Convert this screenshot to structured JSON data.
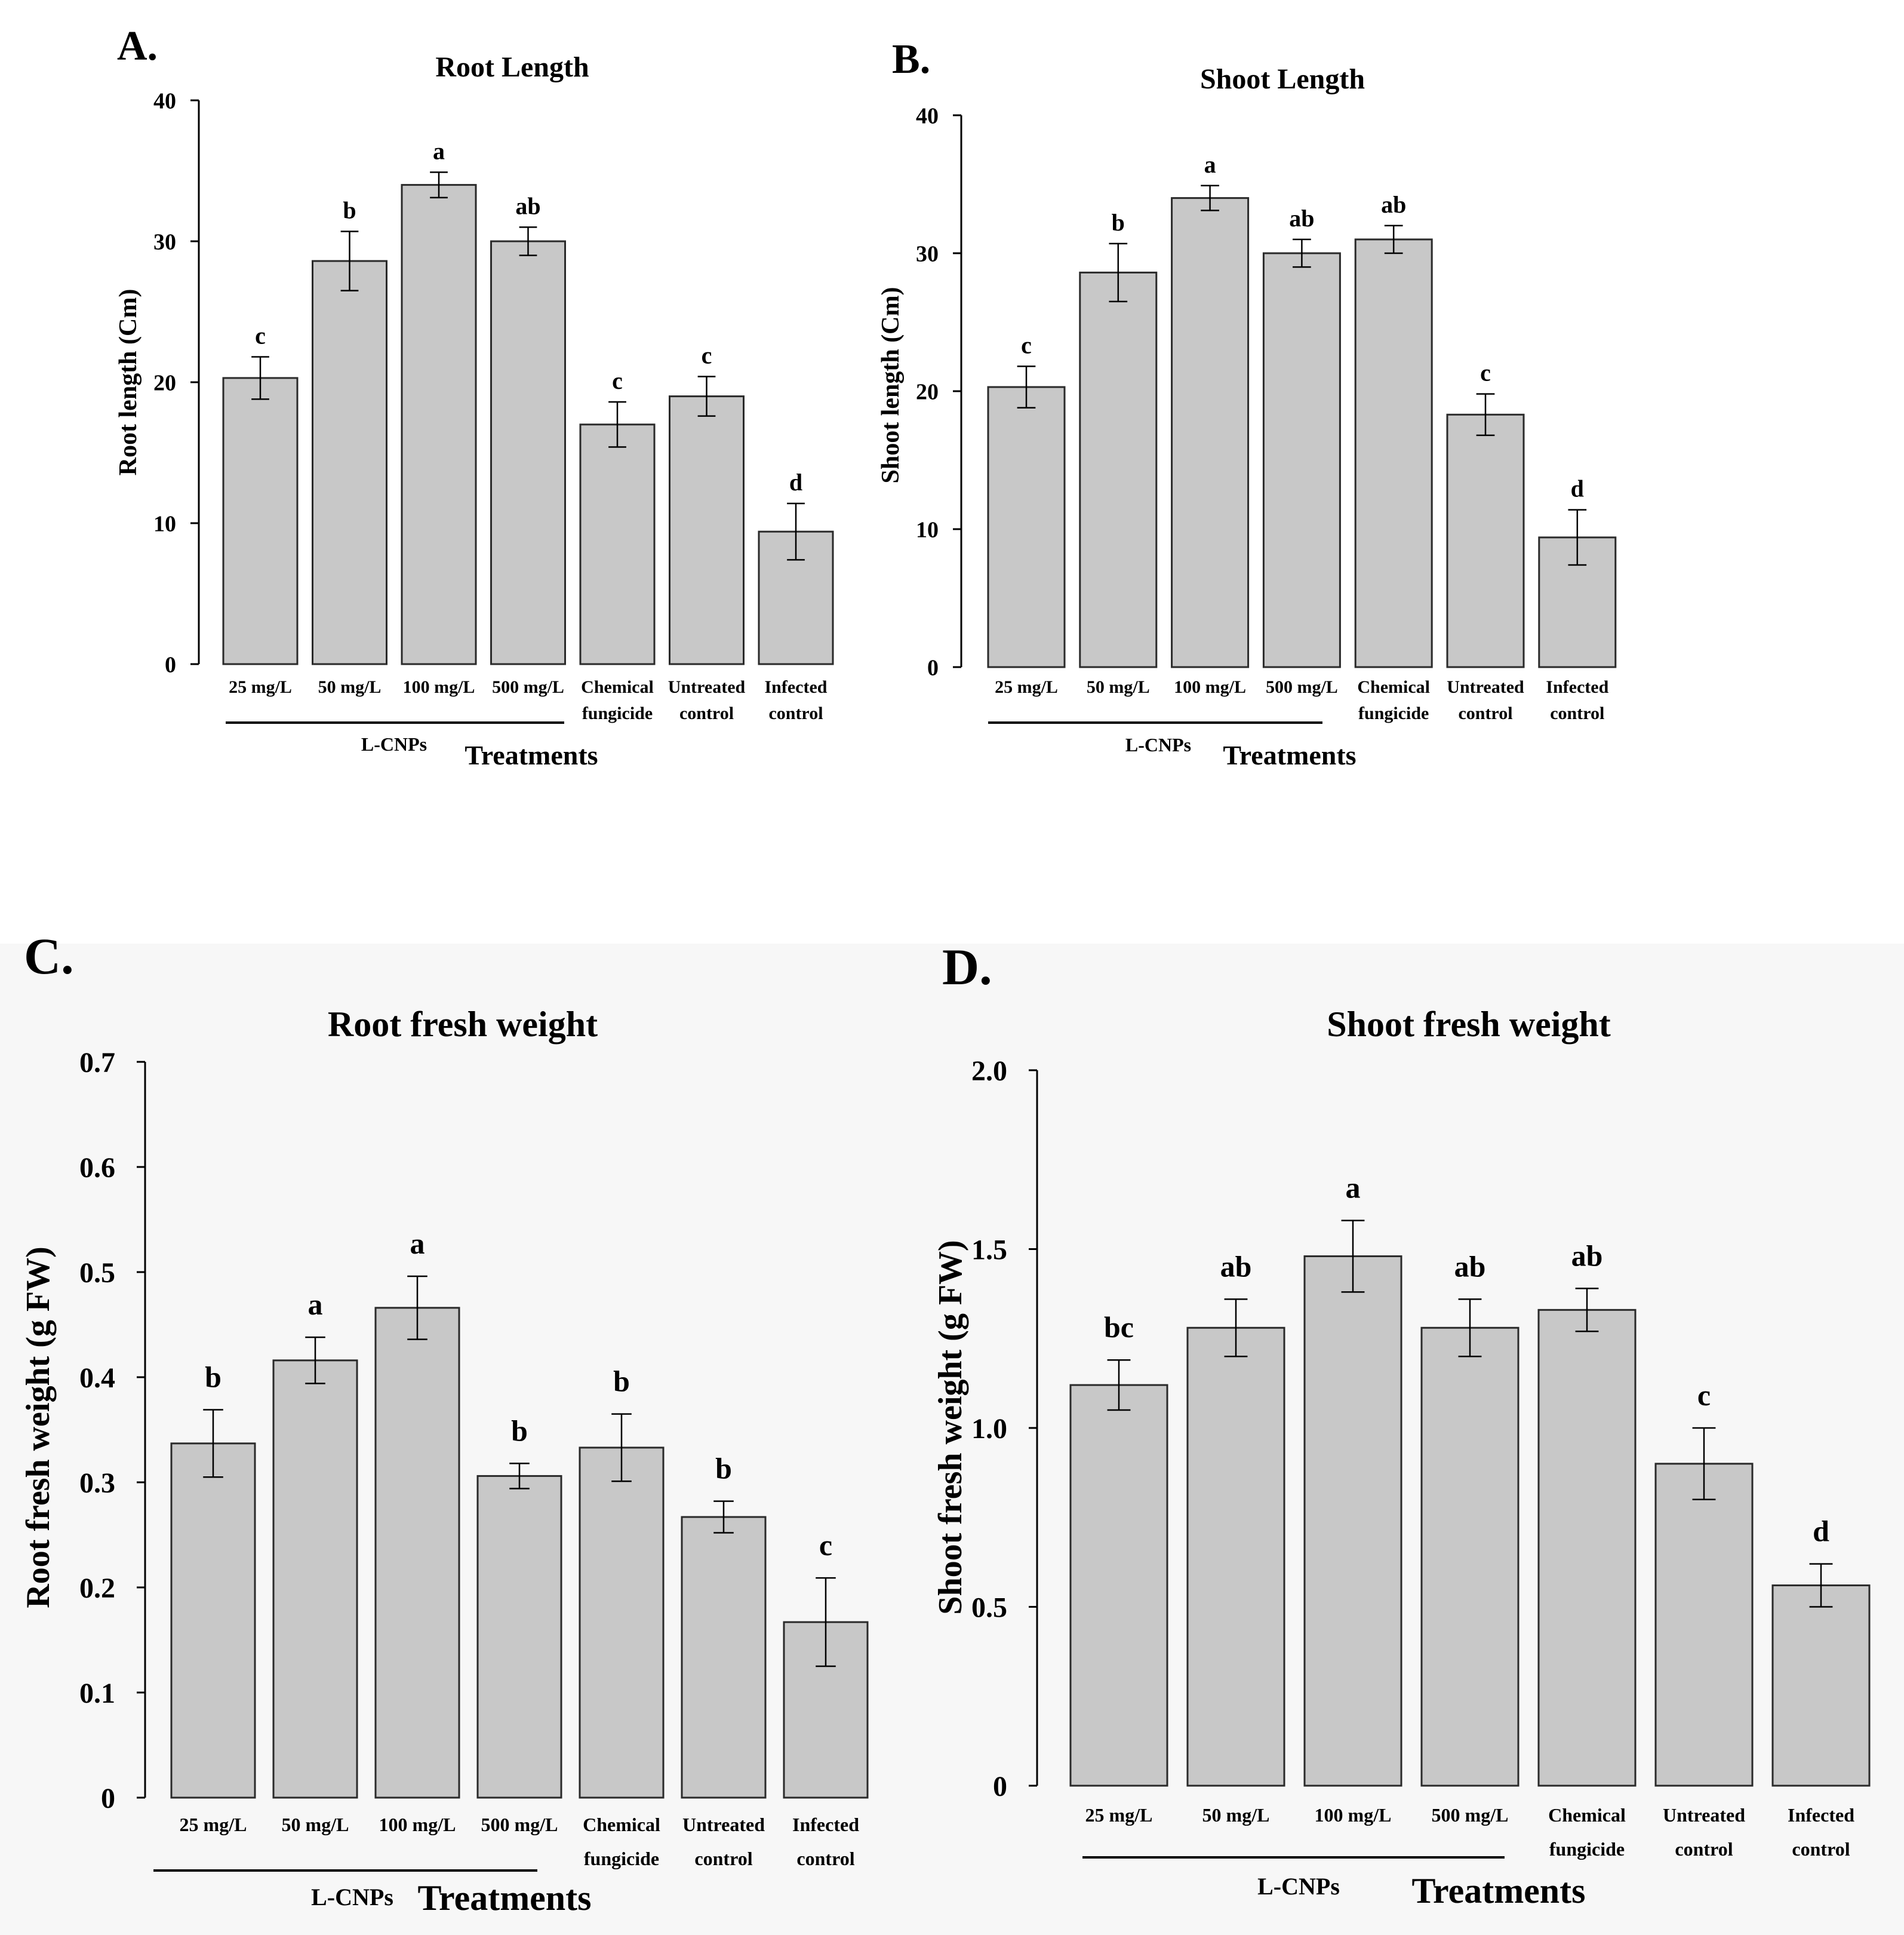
{
  "colors": {
    "bar_fill": "#c8c8c8",
    "bar_stroke": "#2a2a2a",
    "axis": "#000000",
    "lower_background": "#f7f7f7"
  },
  "chart_data": [
    {
      "panel": "A.",
      "type": "bar",
      "title": "Root Length",
      "xlabel": "Treatments",
      "ylabel": "Root length (Cm)",
      "ylim": [
        0,
        40
      ],
      "yticks": [
        0,
        10,
        20,
        30,
        40
      ],
      "ytick_labels": [
        "0",
        "10",
        "20",
        "30",
        "40"
      ],
      "categories": [
        [
          "25 mg/L"
        ],
        [
          "50 mg/L"
        ],
        [
          "100 mg/L"
        ],
        [
          "500 mg/L"
        ],
        [
          "Chemical",
          "fungicide"
        ],
        [
          "Untreated",
          "control"
        ],
        [
          "Infected",
          "control"
        ]
      ],
      "group_label": "L-CNPs",
      "group_span": [
        0,
        3
      ],
      "values": [
        20.3,
        28.6,
        34.0,
        30.0,
        17.0,
        19.0,
        9.4
      ],
      "errors": [
        1.5,
        2.1,
        0.9,
        1.0,
        1.6,
        1.4,
        2.0
      ],
      "significance": [
        "c",
        "b",
        "a",
        "ab",
        "c",
        "c",
        "d"
      ]
    },
    {
      "panel": "B.",
      "type": "bar",
      "title": "Shoot Length",
      "xlabel": "Treatments",
      "ylabel": "Shoot length (Cm)",
      "ylim": [
        0,
        40
      ],
      "yticks": [
        0,
        10,
        20,
        30,
        40
      ],
      "ytick_labels": [
        "0",
        "10",
        "20",
        "30",
        "40"
      ],
      "categories": [
        [
          "25 mg/L"
        ],
        [
          "50 mg/L"
        ],
        [
          "100 mg/L"
        ],
        [
          "500 mg/L"
        ],
        [
          "Chemical",
          "fungicide"
        ],
        [
          "Untreated",
          "control"
        ],
        [
          "Infected",
          "control"
        ]
      ],
      "group_label": "L-CNPs",
      "group_span": [
        0,
        3
      ],
      "values": [
        20.3,
        28.6,
        34.0,
        30.0,
        31.0,
        18.3,
        9.4
      ],
      "errors": [
        1.5,
        2.1,
        0.9,
        1.0,
        1.0,
        1.5,
        2.0
      ],
      "significance": [
        "c",
        "b",
        "a",
        "ab",
        "ab",
        "c",
        "d"
      ]
    },
    {
      "panel": "C.",
      "type": "bar",
      "title": "Root fresh weight",
      "xlabel": "Treatments",
      "ylabel": "Root fresh weight (g FW)",
      "ylim": [
        0,
        0.7
      ],
      "yticks": [
        0,
        0.1,
        0.2,
        0.3,
        0.4,
        0.5,
        0.6,
        0.7
      ],
      "ytick_labels": [
        "0",
        "0.1",
        "0.2",
        "0.3",
        "0.4",
        "0.5",
        "0.6",
        "0.7"
      ],
      "categories": [
        [
          "25 mg/L"
        ],
        [
          "50 mg/L"
        ],
        [
          "100 mg/L"
        ],
        [
          "500 mg/L"
        ],
        [
          "Chemical",
          "fungicide"
        ],
        [
          "Untreated",
          "control"
        ],
        [
          "Infected",
          "control"
        ]
      ],
      "group_label": "L-CNPs",
      "group_span": [
        0,
        3
      ],
      "values": [
        0.337,
        0.416,
        0.466,
        0.306,
        0.333,
        0.267,
        0.167
      ],
      "errors": [
        0.032,
        0.022,
        0.03,
        0.012,
        0.032,
        0.015,
        0.042
      ],
      "significance": [
        "b",
        "a",
        "a",
        "b",
        "b",
        "b",
        "c"
      ]
    },
    {
      "panel": "D.",
      "type": "bar",
      "title": "Shoot fresh weight",
      "xlabel": "Treatments",
      "ylabel": "Shoot fresh weight (g FW)",
      "ylim": [
        0,
        2.0
      ],
      "yticks": [
        0,
        0.5,
        1.0,
        1.5,
        2.0
      ],
      "ytick_labels": [
        "0",
        "0.5",
        "1.0",
        "1.5",
        "2.0"
      ],
      "categories": [
        [
          "25 mg/L"
        ],
        [
          "50 mg/L"
        ],
        [
          "100 mg/L"
        ],
        [
          "500 mg/L"
        ],
        [
          "Chemical",
          "fungicide"
        ],
        [
          "Untreated",
          "control"
        ],
        [
          "Infected",
          "control"
        ]
      ],
      "group_label": "L-CNPs",
      "group_span": [
        0,
        3
      ],
      "values": [
        1.12,
        1.28,
        1.48,
        1.28,
        1.33,
        0.9,
        0.56
      ],
      "errors": [
        0.07,
        0.08,
        0.1,
        0.08,
        0.06,
        0.1,
        0.06
      ],
      "significance": [
        "bc",
        "ab",
        "a",
        "ab",
        "ab",
        "c",
        "d"
      ]
    }
  ]
}
